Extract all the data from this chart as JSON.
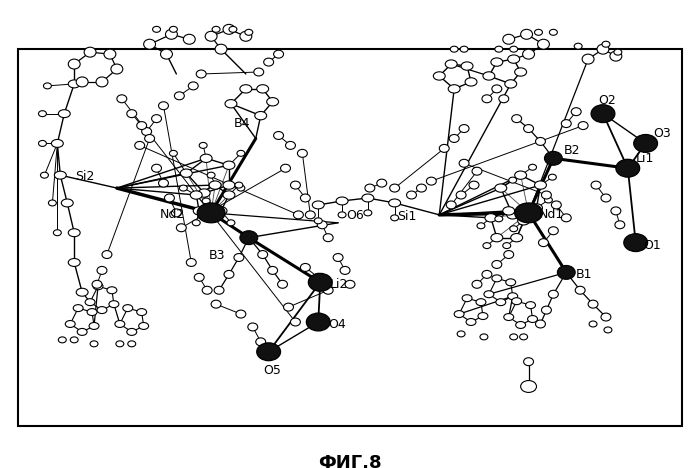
{
  "title": "ФИГ.8",
  "title_fontsize": 13,
  "background_color": "#ffffff",
  "border_color": "#000000",
  "border_linewidth": 1.5,
  "fig_width": 7.0,
  "fig_height": 4.68,
  "dpi": 100,
  "xmin": 0,
  "xmax": 700,
  "ymin": 0,
  "ymax": 430,
  "diagram_border": [
    15,
    15,
    685,
    395
  ]
}
